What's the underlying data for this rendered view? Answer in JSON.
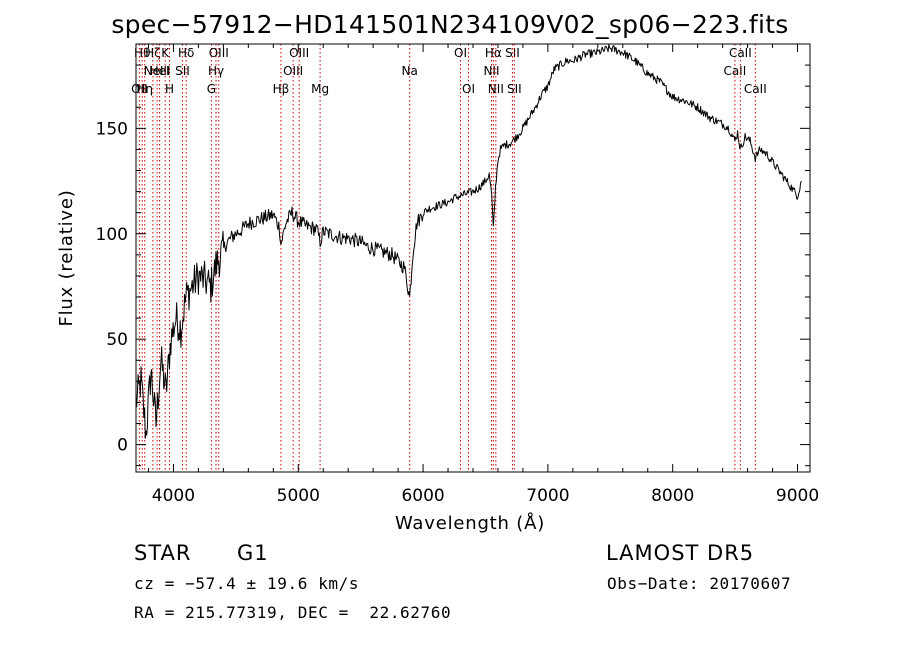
{
  "chart_data": {
    "type": "line",
    "title": "spec−57912−HD141501N234109V02_sp06−223.fits",
    "xlabel": "Wavelength (Å)",
    "ylabel": "Flux (relative)",
    "xlim": [
      3700,
      9100
    ],
    "ylim": [
      -13,
      190
    ],
    "xticks": [
      4000,
      5000,
      6000,
      7000,
      8000,
      9000
    ],
    "yticks": [
      0,
      50,
      100,
      150
    ],
    "grid": false,
    "line_color": "#000000",
    "marker_color": "#cc0000",
    "series": [
      {
        "x": [
          3700,
          3740,
          3780,
          3820,
          3860,
          3900,
          3940,
          3980,
          4020,
          4060,
          4100,
          4150,
          4200,
          4250,
          4300,
          4340,
          4380,
          4420,
          4460,
          4500,
          4550,
          4600,
          4650,
          4700,
          4750,
          4800,
          4850,
          4861,
          4900,
          4950,
          5000,
          5050,
          5100,
          5150,
          5175,
          5200,
          5250,
          5300,
          5350,
          5400,
          5450,
          5500,
          5550,
          5600,
          5650,
          5700,
          5750,
          5800,
          5850,
          5893,
          5920,
          5950,
          6000,
          6050,
          6100,
          6150,
          6200,
          6250,
          6300,
          6350,
          6400,
          6450,
          6500,
          6530,
          6550,
          6563,
          6580,
          6600,
          6620,
          6650,
          6700,
          6750,
          6800,
          6850,
          6900,
          6950,
          7000,
          7050,
          7100,
          7150,
          7200,
          7300,
          7400,
          7500,
          7600,
          7700,
          7800,
          7900,
          8000,
          8100,
          8200,
          8300,
          8400,
          8450,
          8498,
          8520,
          8542,
          8580,
          8620,
          8662,
          8700,
          8750,
          8800,
          8850,
          8900,
          8950,
          9000,
          9030
        ],
        "y": [
          20,
          30,
          5,
          35,
          10,
          40,
          25,
          50,
          60,
          55,
          70,
          75,
          80,
          78,
          75,
          85,
          90,
          95,
          98,
          100,
          102,
          105,
          106,
          107,
          108,
          109,
          103,
          95,
          105,
          110,
          106,
          104,
          103,
          102,
          96,
          101,
          100,
          99,
          98,
          98,
          97,
          96,
          94,
          93,
          92,
          91,
          90,
          87,
          84,
          70,
          92,
          105,
          110,
          112,
          113,
          114,
          115,
          117,
          118,
          119,
          120,
          122,
          125,
          128,
          118,
          102,
          122,
          135,
          140,
          142,
          143,
          146,
          150,
          155,
          160,
          166,
          170,
          178,
          180,
          182,
          182,
          185,
          186,
          188,
          186,
          182,
          176,
          172,
          165,
          163,
          160,
          155,
          152,
          150,
          144,
          148,
          140,
          146,
          144,
          136,
          140,
          138,
          134,
          130,
          126,
          122,
          118,
          125
        ]
      }
    ],
    "line_markers": [
      {
        "x": 3727,
        "label": "OII",
        "row": 3
      },
      {
        "x": 3750,
        "label": "Hθ",
        "row": 1
      },
      {
        "x": 3770,
        "label": "Hη",
        "row": 3
      },
      {
        "x": 3835,
        "label": "Hζ",
        "row": 1
      },
      {
        "x": 3869,
        "label": "NeIII",
        "row": 2
      },
      {
        "x": 3889,
        "label": "HeI",
        "row": 2
      },
      {
        "x": 3934,
        "label": "K",
        "row": 1
      },
      {
        "x": 3969,
        "label": "H",
        "row": 3
      },
      {
        "x": 4072,
        "label": "SII",
        "row": 2
      },
      {
        "x": 4102,
        "label": "Hδ",
        "row": 1
      },
      {
        "x": 4304,
        "label": "G",
        "row": 3
      },
      {
        "x": 4341,
        "label": "Hγ",
        "row": 2
      },
      {
        "x": 4363,
        "label": "OIII",
        "row": 1
      },
      {
        "x": 4861,
        "label": "Hβ",
        "row": 3
      },
      {
        "x": 4959,
        "label": "OIII",
        "row": 2
      },
      {
        "x": 5007,
        "label": "OIII",
        "row": 1
      },
      {
        "x": 5175,
        "label": "Mg",
        "row": 3
      },
      {
        "x": 5893,
        "label": "Na",
        "row": 2
      },
      {
        "x": 6300,
        "label": "OI",
        "row": 1
      },
      {
        "x": 6364,
        "label": "OI",
        "row": 3
      },
      {
        "x": 6548,
        "label": "NII",
        "row": 2
      },
      {
        "x": 6563,
        "label": "Hα",
        "row": 1
      },
      {
        "x": 6583,
        "label": "NII",
        "row": 3
      },
      {
        "x": 6716,
        "label": "SII",
        "row": 1
      },
      {
        "x": 6731,
        "label": "SII",
        "row": 3
      },
      {
        "x": 8498,
        "label": "CaII",
        "row": 2
      },
      {
        "x": 8542,
        "label": "CaII",
        "row": 1
      },
      {
        "x": 8662,
        "label": "CaII",
        "row": 3
      }
    ]
  },
  "footer": {
    "class_label": "STAR",
    "subclass": "G1",
    "survey": "LAMOST DR5",
    "redshift_text": "cz = −57.4 ± 19.6 km/s",
    "obs_date_text": "Obs−Date: 20170607",
    "coords_text": "RA = 215.77319, DEC =  22.62760"
  }
}
